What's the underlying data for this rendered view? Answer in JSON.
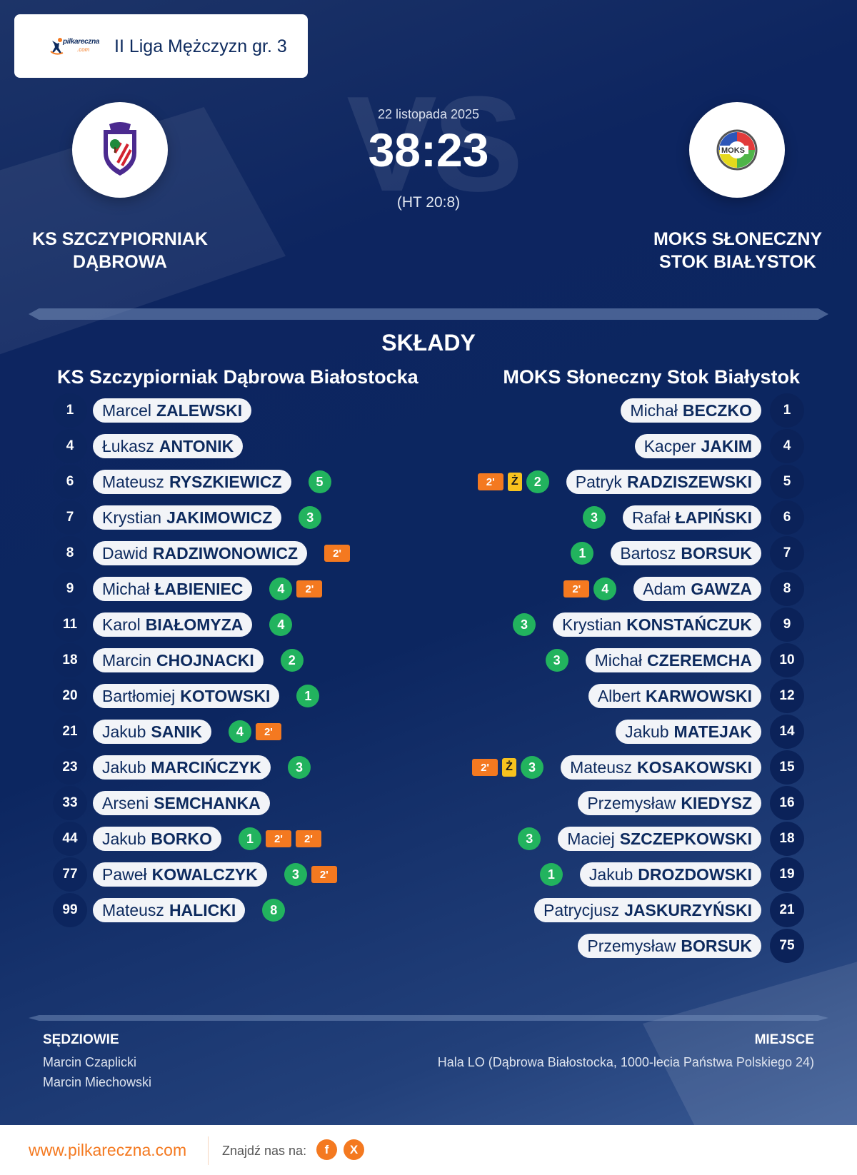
{
  "header": {
    "brand_logo": {
      "name": "pilkareczna",
      "suffix": ".com"
    },
    "league_title": "II Liga Mężczyzn gr. 3"
  },
  "match": {
    "date": "22 listopada 2025",
    "score": "38:23",
    "halftime": "(HT 20:8)",
    "vs_watermark": "VS",
    "home": {
      "name_line1": "KS SZCZYPIORNIAK",
      "name_line2": "DĄBROWA",
      "logo_icon": "club-crest-icon"
    },
    "away": {
      "name_line1": "MOKS SŁONECZNY",
      "name_line2": "STOK BIAŁYSTOK",
      "logo_icon": "club-crest-icon"
    }
  },
  "lineups": {
    "title": "SKŁADY",
    "home": {
      "team_title": "KS Szczypiorniak Dąbrowa Białostocka",
      "players": [
        {
          "number": "1",
          "first": "Marcel",
          "last": "ZALEWSKI",
          "goals": null,
          "yellow": 0,
          "suspensions": 0
        },
        {
          "number": "4",
          "first": "Łukasz",
          "last": "ANTONIK",
          "goals": null,
          "yellow": 0,
          "suspensions": 0
        },
        {
          "number": "6",
          "first": "Mateusz",
          "last": "RYSZKIEWICZ",
          "goals": "5",
          "yellow": 0,
          "suspensions": 0
        },
        {
          "number": "7",
          "first": "Krystian",
          "last": "JAKIMOWICZ",
          "goals": "3",
          "yellow": 0,
          "suspensions": 0
        },
        {
          "number": "8",
          "first": "Dawid",
          "last": "RADZIWONOWICZ",
          "goals": null,
          "yellow": 0,
          "suspensions": 1
        },
        {
          "number": "9",
          "first": "Michał",
          "last": "ŁABIENIEC",
          "goals": "4",
          "yellow": 0,
          "suspensions": 1
        },
        {
          "number": "11",
          "first": "Karol",
          "last": "BIAŁOMYZA",
          "goals": "4",
          "yellow": 0,
          "suspensions": 0
        },
        {
          "number": "18",
          "first": "Marcin",
          "last": "CHOJNACKI",
          "goals": "2",
          "yellow": 0,
          "suspensions": 0
        },
        {
          "number": "20",
          "first": "Bartłomiej",
          "last": "KOTOWSKI",
          "goals": "1",
          "yellow": 0,
          "suspensions": 0
        },
        {
          "number": "21",
          "first": "Jakub",
          "last": "SANIK",
          "goals": "4",
          "yellow": 0,
          "suspensions": 1
        },
        {
          "number": "23",
          "first": "Jakub",
          "last": "MARCIŃCZYK",
          "goals": "3",
          "yellow": 0,
          "suspensions": 0
        },
        {
          "number": "33",
          "first": "Arseni",
          "last": "SEMCHANKA",
          "goals": null,
          "yellow": 0,
          "suspensions": 0
        },
        {
          "number": "44",
          "first": "Jakub",
          "last": "BORKO",
          "goals": "1",
          "yellow": 0,
          "suspensions": 2
        },
        {
          "number": "77",
          "first": "Paweł",
          "last": "KOWALCZYK",
          "goals": "3",
          "yellow": 0,
          "suspensions": 1
        },
        {
          "number": "99",
          "first": "Mateusz",
          "last": "HALICKI",
          "goals": "8",
          "yellow": 0,
          "suspensions": 0
        }
      ]
    },
    "away": {
      "team_title": "MOKS Słoneczny Stok Białystok",
      "players": [
        {
          "number": "1",
          "first": "Michał",
          "last": "BECZKO",
          "goals": null,
          "yellow": 0,
          "suspensions": 0
        },
        {
          "number": "4",
          "first": "Kacper",
          "last": "JAKIM",
          "goals": null,
          "yellow": 0,
          "suspensions": 0
        },
        {
          "number": "5",
          "first": "Patryk",
          "last": "RADZISZEWSKI",
          "goals": "2",
          "yellow": 1,
          "suspensions": 1
        },
        {
          "number": "6",
          "first": "Rafał",
          "last": "ŁAPIŃSKI",
          "goals": "3",
          "yellow": 0,
          "suspensions": 0
        },
        {
          "number": "7",
          "first": "Bartosz",
          "last": "BORSUK",
          "goals": "1",
          "yellow": 0,
          "suspensions": 0
        },
        {
          "number": "8",
          "first": "Adam",
          "last": "GAWZA",
          "goals": "4",
          "yellow": 0,
          "suspensions": 1
        },
        {
          "number": "9",
          "first": "Krystian",
          "last": "KONSTAŃCZUK",
          "goals": "3",
          "yellow": 0,
          "suspensions": 0
        },
        {
          "number": "10",
          "first": "Michał",
          "last": "CZEREMCHA",
          "goals": "3",
          "yellow": 0,
          "suspensions": 0
        },
        {
          "number": "12",
          "first": "Albert",
          "last": "KARWOWSKI",
          "goals": null,
          "yellow": 0,
          "suspensions": 0
        },
        {
          "number": "14",
          "first": "Jakub",
          "last": "MATEJAK",
          "goals": null,
          "yellow": 0,
          "suspensions": 0
        },
        {
          "number": "15",
          "first": "Mateusz",
          "last": "KOSAKOWSKI",
          "goals": "3",
          "yellow": 1,
          "suspensions": 1
        },
        {
          "number": "16",
          "first": "Przemysław",
          "last": "KIEDYSZ",
          "goals": null,
          "yellow": 0,
          "suspensions": 0
        },
        {
          "number": "18",
          "first": "Maciej",
          "last": "SZCZEPKOWSKI",
          "goals": "3",
          "yellow": 0,
          "suspensions": 0
        },
        {
          "number": "19",
          "first": "Jakub",
          "last": "DROZDOWSKI",
          "goals": "1",
          "yellow": 0,
          "suspensions": 0
        },
        {
          "number": "21",
          "first": "Patrycjusz",
          "last": "JASKURZYŃSKI",
          "goals": null,
          "yellow": 0,
          "suspensions": 0
        },
        {
          "number": "75",
          "first": "Przemysław",
          "last": "BORSUK",
          "goals": null,
          "yellow": 0,
          "suspensions": 0
        }
      ]
    },
    "badges": {
      "suspension_label": "2'",
      "yellow_label": "Ż"
    }
  },
  "officials": {
    "referees_label": "SĘDZIOWIE",
    "referees": [
      "Marcin Czaplicki",
      "Marcin Miechowski"
    ],
    "venue_label": "MIEJSCE",
    "venue": "Hala LO (Dąbrowa Białostocka, 1000-lecia Państwa Polskiego 24)"
  },
  "footer": {
    "url": "www.pilkareczna.com",
    "find_us": "Znajdź nas na:",
    "social": [
      {
        "name": "facebook",
        "glyph": "f"
      },
      {
        "name": "x",
        "glyph": "X"
      }
    ]
  },
  "colors": {
    "brand_orange": "#f47920",
    "navy": "#0d2a5e",
    "goal_green": "#22b35e",
    "yellow_card": "#f7c21e",
    "pill_bg": "#f2f4f8"
  }
}
